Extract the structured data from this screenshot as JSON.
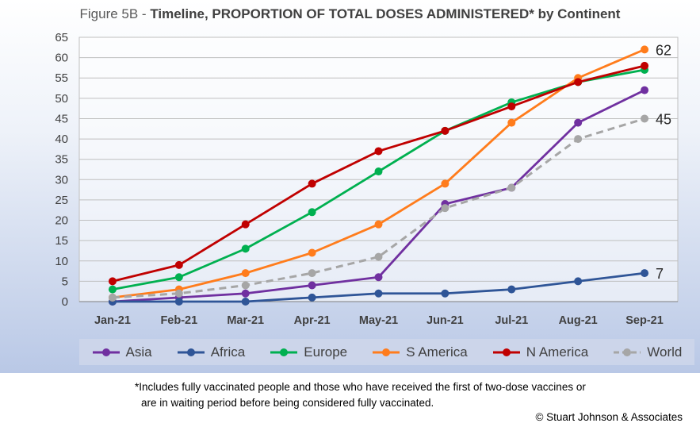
{
  "title_prefix": "Figure 5B - ",
  "title_main": "Timeline, PROPORTION OF TOTAL DOSES ADMINISTERED* by Continent",
  "footnote_line1": "*Includes fully vaccinated people and those who have received the first of two-dose vaccines or",
  "footnote_line2": "are in waiting period before being considered fully vaccinated.",
  "copyright": "© Stuart Johnson & Associates",
  "chart_data": {
    "type": "line",
    "categories": [
      "Jan-21",
      "Feb-21",
      "Mar-21",
      "Apr-21",
      "May-21",
      "Jun-21",
      "Jul-21",
      "Aug-21",
      "Sep-21"
    ],
    "ylim": [
      0,
      65
    ],
    "ytick_step": 5,
    "grid": true,
    "legend_position": "bottom",
    "series": [
      {
        "name": "Asia",
        "color": "#7030a0",
        "dashed": false,
        "values": [
          0,
          1,
          2,
          4,
          6,
          24,
          28,
          44,
          52
        ]
      },
      {
        "name": "Africa",
        "color": "#2f5597",
        "dashed": false,
        "values": [
          0,
          0,
          0,
          1,
          2,
          2,
          3,
          5,
          7
        ]
      },
      {
        "name": "Europe",
        "color": "#00b050",
        "dashed": false,
        "values": [
          3,
          6,
          13,
          22,
          32,
          42,
          49,
          54,
          57
        ]
      },
      {
        "name": "S America",
        "color": "#ff7c1c",
        "dashed": false,
        "values": [
          1,
          3,
          7,
          12,
          19,
          29,
          44,
          55,
          62
        ]
      },
      {
        "name": "N America",
        "color": "#c00000",
        "dashed": false,
        "values": [
          5,
          9,
          19,
          29,
          37,
          42,
          48,
          54,
          58
        ]
      },
      {
        "name": "World",
        "color": "#a6a6a6",
        "dashed": true,
        "values": [
          1,
          2,
          4,
          7,
          11,
          23,
          28,
          40,
          45
        ]
      }
    ],
    "annotations": [
      {
        "text": "62",
        "series": "S America",
        "category": "Sep-21"
      },
      {
        "text": "45",
        "series": "World",
        "category": "Sep-21"
      },
      {
        "text": "7",
        "series": "Africa",
        "category": "Sep-21"
      }
    ]
  }
}
